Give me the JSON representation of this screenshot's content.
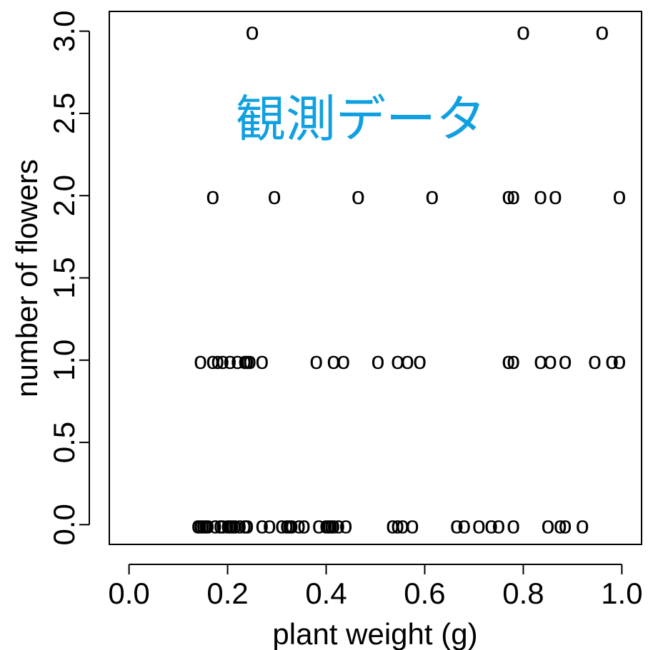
{
  "chart_data": {
    "type": "scatter",
    "marker": "o",
    "xlabel": "plant weight (g)",
    "ylabel": "number of flowers",
    "xlim": [
      -0.04,
      1.04
    ],
    "ylim": [
      -0.12,
      3.12
    ],
    "xticks": [
      "0.0",
      "0.2",
      "0.4",
      "0.6",
      "0.8",
      "1.0"
    ],
    "yticks": [
      "0.0",
      "0.5",
      "1.0",
      "1.5",
      "2.0",
      "2.5",
      "3.0"
    ],
    "annotation": {
      "text": "観測データ",
      "color": "#10a0e0"
    },
    "points": [
      {
        "x": 0.14,
        "y": 0
      },
      {
        "x": 0.145,
        "y": 0
      },
      {
        "x": 0.15,
        "y": 0
      },
      {
        "x": 0.155,
        "y": 0
      },
      {
        "x": 0.16,
        "y": 0
      },
      {
        "x": 0.175,
        "y": 0
      },
      {
        "x": 0.185,
        "y": 0
      },
      {
        "x": 0.19,
        "y": 0
      },
      {
        "x": 0.2,
        "y": 0
      },
      {
        "x": 0.205,
        "y": 0
      },
      {
        "x": 0.21,
        "y": 0
      },
      {
        "x": 0.215,
        "y": 0
      },
      {
        "x": 0.225,
        "y": 0
      },
      {
        "x": 0.235,
        "y": 0
      },
      {
        "x": 0.24,
        "y": 0
      },
      {
        "x": 0.27,
        "y": 0
      },
      {
        "x": 0.285,
        "y": 0
      },
      {
        "x": 0.31,
        "y": 0
      },
      {
        "x": 0.32,
        "y": 0
      },
      {
        "x": 0.325,
        "y": 0
      },
      {
        "x": 0.33,
        "y": 0
      },
      {
        "x": 0.345,
        "y": 0
      },
      {
        "x": 0.355,
        "y": 0
      },
      {
        "x": 0.385,
        "y": 0
      },
      {
        "x": 0.4,
        "y": 0
      },
      {
        "x": 0.405,
        "y": 0
      },
      {
        "x": 0.41,
        "y": 0
      },
      {
        "x": 0.415,
        "y": 0
      },
      {
        "x": 0.425,
        "y": 0
      },
      {
        "x": 0.44,
        "y": 0
      },
      {
        "x": 0.535,
        "y": 0
      },
      {
        "x": 0.545,
        "y": 0
      },
      {
        "x": 0.555,
        "y": 0
      },
      {
        "x": 0.575,
        "y": 0
      },
      {
        "x": 0.665,
        "y": 0
      },
      {
        "x": 0.68,
        "y": 0
      },
      {
        "x": 0.71,
        "y": 0
      },
      {
        "x": 0.735,
        "y": 0
      },
      {
        "x": 0.75,
        "y": 0
      },
      {
        "x": 0.78,
        "y": 0
      },
      {
        "x": 0.85,
        "y": 0
      },
      {
        "x": 0.875,
        "y": 0
      },
      {
        "x": 0.885,
        "y": 0
      },
      {
        "x": 0.92,
        "y": 0
      },
      {
        "x": 0.145,
        "y": 1
      },
      {
        "x": 0.17,
        "y": 1
      },
      {
        "x": 0.18,
        "y": 1
      },
      {
        "x": 0.19,
        "y": 1
      },
      {
        "x": 0.205,
        "y": 1
      },
      {
        "x": 0.22,
        "y": 1
      },
      {
        "x": 0.235,
        "y": 1
      },
      {
        "x": 0.24,
        "y": 1
      },
      {
        "x": 0.245,
        "y": 1
      },
      {
        "x": 0.27,
        "y": 1
      },
      {
        "x": 0.38,
        "y": 1
      },
      {
        "x": 0.415,
        "y": 1
      },
      {
        "x": 0.435,
        "y": 1
      },
      {
        "x": 0.505,
        "y": 1
      },
      {
        "x": 0.545,
        "y": 1
      },
      {
        "x": 0.565,
        "y": 1
      },
      {
        "x": 0.59,
        "y": 1
      },
      {
        "x": 0.77,
        "y": 1
      },
      {
        "x": 0.78,
        "y": 1
      },
      {
        "x": 0.835,
        "y": 1
      },
      {
        "x": 0.855,
        "y": 1
      },
      {
        "x": 0.885,
        "y": 1
      },
      {
        "x": 0.945,
        "y": 1
      },
      {
        "x": 0.98,
        "y": 1
      },
      {
        "x": 0.995,
        "y": 1
      },
      {
        "x": 0.17,
        "y": 2
      },
      {
        "x": 0.295,
        "y": 2
      },
      {
        "x": 0.465,
        "y": 2
      },
      {
        "x": 0.615,
        "y": 2
      },
      {
        "x": 0.77,
        "y": 2
      },
      {
        "x": 0.78,
        "y": 2
      },
      {
        "x": 0.835,
        "y": 2
      },
      {
        "x": 0.865,
        "y": 2
      },
      {
        "x": 0.995,
        "y": 2
      },
      {
        "x": 0.25,
        "y": 3
      },
      {
        "x": 0.8,
        "y": 3
      },
      {
        "x": 0.96,
        "y": 3
      }
    ]
  }
}
